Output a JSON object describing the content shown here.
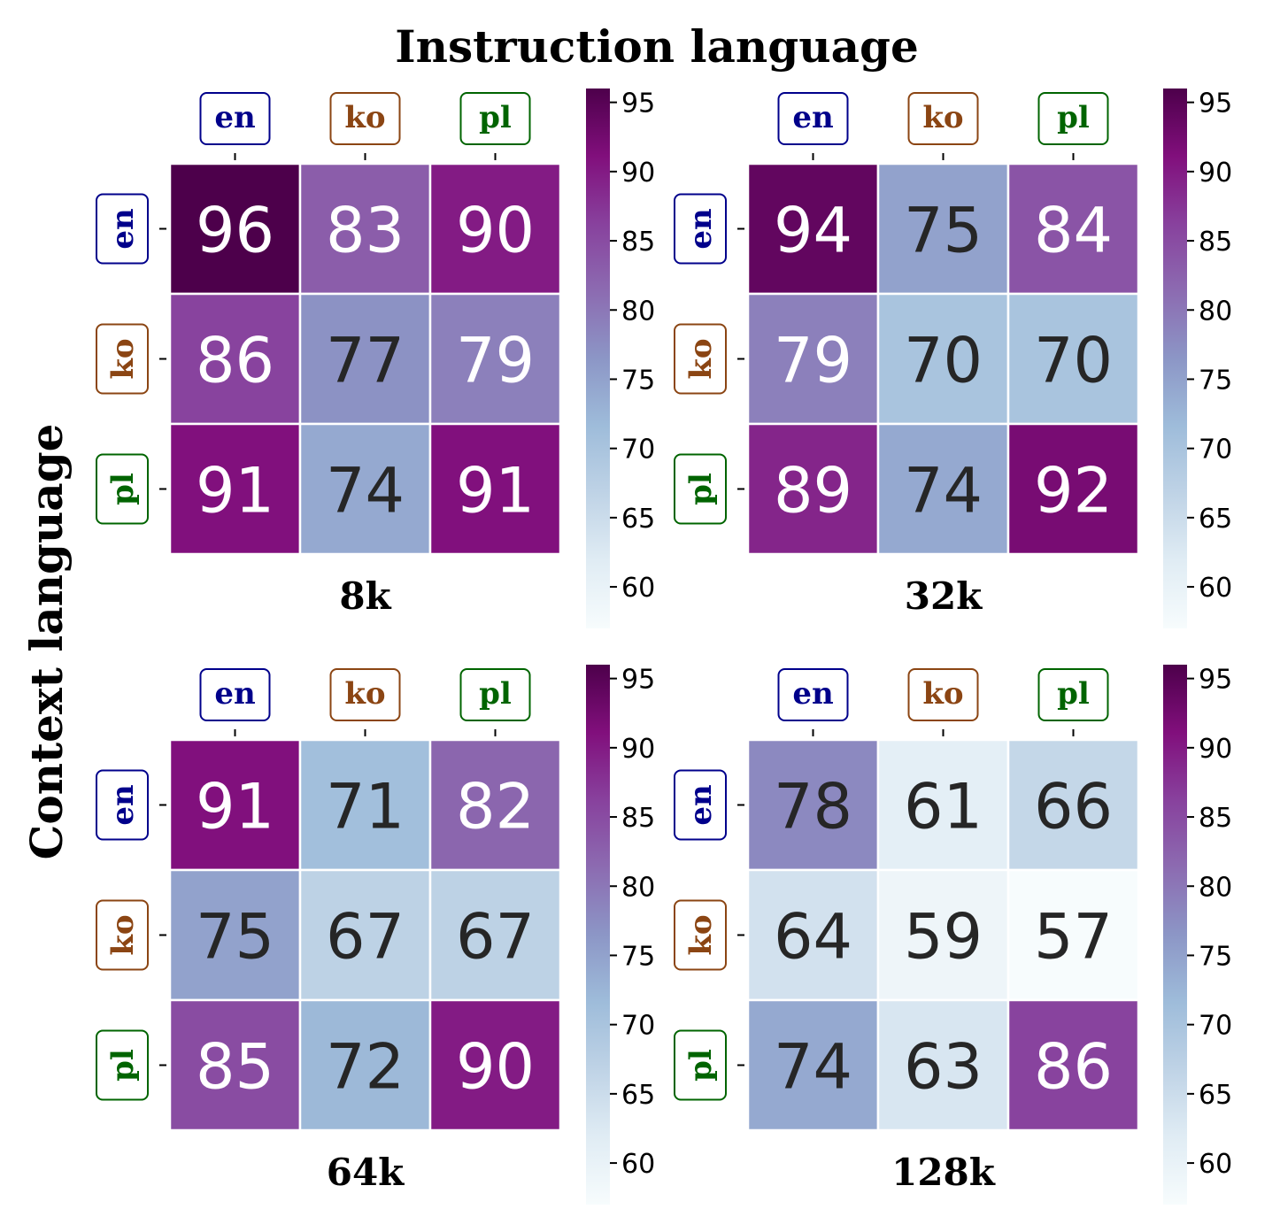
{
  "chart_data": {
    "type": "heatmap",
    "title": "Instruction language",
    "ylabel": "Context language",
    "x_categories": [
      "en",
      "ko",
      "pl"
    ],
    "y_categories": [
      "en",
      "ko",
      "pl"
    ],
    "category_colors": {
      "en": "#00008b",
      "ko": "#8b4513",
      "pl": "#006400"
    },
    "colormap": "BuPu",
    "colorbar_range": [
      57,
      96
    ],
    "colorbar_ticks": [
      60,
      65,
      70,
      75,
      80,
      85,
      90,
      95
    ],
    "panels": [
      {
        "name": "8k",
        "values": [
          [
            96,
            83,
            90
          ],
          [
            86,
            77,
            79
          ],
          [
            91,
            74,
            91
          ]
        ]
      },
      {
        "name": "32k",
        "values": [
          [
            94,
            75,
            84
          ],
          [
            79,
            70,
            70
          ],
          [
            89,
            74,
            92
          ]
        ]
      },
      {
        "name": "64k",
        "values": [
          [
            91,
            71,
            82
          ],
          [
            75,
            67,
            67
          ],
          [
            85,
            72,
            90
          ]
        ]
      },
      {
        "name": "128k",
        "values": [
          [
            78,
            61,
            66
          ],
          [
            64,
            59,
            57
          ],
          [
            74,
            63,
            86
          ]
        ]
      }
    ]
  }
}
